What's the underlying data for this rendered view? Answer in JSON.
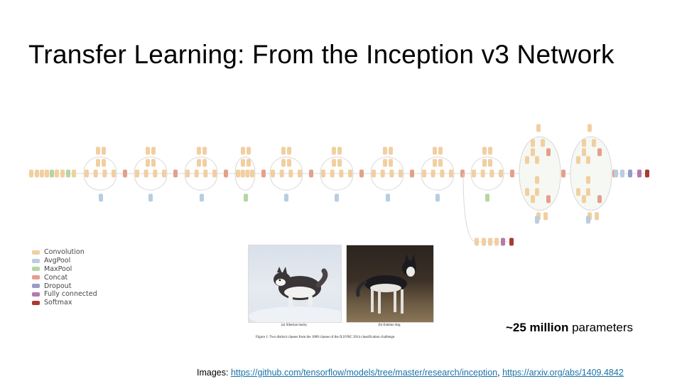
{
  "slide": {
    "title": "Transfer Learning: From the Inception v3 Network",
    "params_bold": "~25 million",
    "params_rest": " parameters",
    "images_label": "Images: ",
    "link1": "https://github.com/tensorflow/models/tree/master/research/inception",
    "separator": ", ",
    "link2": "https://arxiv.org/abs/1409.4842"
  },
  "legend": [
    {
      "label": "Convolution",
      "color": "#f1cfa0"
    },
    {
      "label": "AvgPool",
      "color": "#b9cde0"
    },
    {
      "label": "MaxPool",
      "color": "#b5d6a0"
    },
    {
      "label": "Concat",
      "color": "#e3a08c"
    },
    {
      "label": "Dropout",
      "color": "#9b9cc4"
    },
    {
      "label": "Fully connected",
      "color": "#b57aad"
    },
    {
      "label": "Softmax",
      "color": "#a83b32"
    }
  ],
  "figure": {
    "caption_a": "(a) Siberian husky",
    "caption_b": "(b) Eskimo dog",
    "caption": "Figure 1: Two distinct classes from the 1000 classes of the ILSVRC 2014 classification challenge."
  }
}
